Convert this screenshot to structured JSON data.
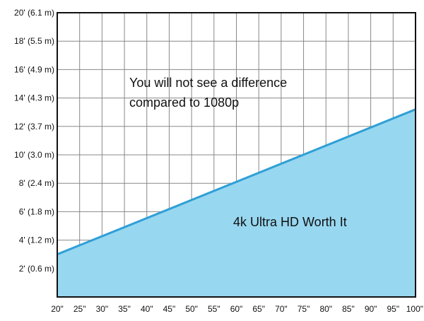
{
  "chart_data": {
    "type": "area",
    "x_ticks": [
      "20\"",
      "25\"",
      "30\"",
      "35\"",
      "40\"",
      "45\"",
      "50\"",
      "55\"",
      "60\"",
      "65\"",
      "70\"",
      "75\"",
      "80\"",
      "85\"",
      "90\"",
      "95\"",
      "100\""
    ],
    "y_ticks": [
      "2' (0.6 m)",
      "4' (1.2 m)",
      "6' (1.8 m)",
      "8' (2.4 m)",
      "10' (3.0 m)",
      "12' (3.7 m)",
      "14' (4.3 m)",
      "16' (4.9 m)",
      "18' (5.5 m)",
      "20' (6.1 m)"
    ],
    "x_range": [
      20,
      100
    ],
    "y_range": [
      0,
      20
    ],
    "grid": true,
    "series": [
      {
        "x": [
          20,
          100
        ],
        "y": [
          3,
          13.2
        ]
      }
    ],
    "annotations": {
      "upper_line1": "You will not see a difference",
      "upper_line2": "compared to 1080p",
      "lower": "4k Ultra HD Worth It"
    },
    "colors": {
      "fill": "#98d7f0",
      "line": "#2f9fd6",
      "grid": "#888888"
    }
  }
}
